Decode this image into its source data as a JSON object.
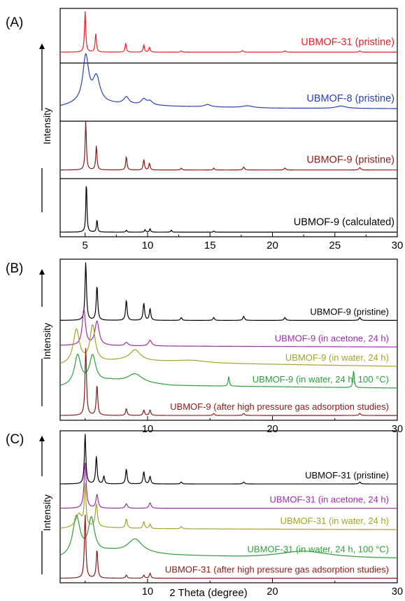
{
  "chart_data": [
    {
      "type": "line",
      "panel_label": "(A)",
      "ylabel": "Intensity",
      "xlim": [
        3,
        30
      ],
      "x_ticks": [
        "5",
        "10",
        "15",
        "20",
        "25",
        "30"
      ],
      "series": [
        {
          "name": "UBMOF-31 (pristine)",
          "color": "#e8202a",
          "baseline": 0.2,
          "amplitude": 0.75,
          "peaks": [
            [
              5.0,
              1.0,
              0.06
            ],
            [
              5.85,
              0.45,
              0.06
            ],
            [
              8.25,
              0.22,
              0.06
            ],
            [
              9.7,
              0.18,
              0.06
            ],
            [
              10.15,
              0.12,
              0.06
            ],
            [
              12.7,
              0.03,
              0.06
            ],
            [
              17.6,
              0.04,
              0.08
            ],
            [
              21.0,
              0.03,
              0.08
            ],
            [
              27.0,
              0.03,
              0.08
            ]
          ]
        },
        {
          "name": "UBMOF-8 (pristine)",
          "color": "#2a3fb8",
          "baseline": 0.2,
          "amplitude": 0.8,
          "peaks": [
            [
              5.05,
              1.0,
              0.28
            ],
            [
              5.9,
              0.55,
              0.35
            ],
            [
              8.3,
              0.15,
              0.25
            ],
            [
              9.7,
              0.12,
              0.25
            ],
            [
              10.2,
              0.08,
              0.25
            ],
            [
              14.8,
              0.05,
              0.3
            ],
            [
              18.0,
              0.04,
              0.5
            ],
            [
              25.5,
              0.05,
              0.5
            ]
          ],
          "background": [
            [
              3,
              0.06
            ],
            [
              4.3,
              0.12
            ],
            [
              7,
              0.12
            ],
            [
              12,
              0.07
            ],
            [
              20,
              0.03
            ],
            [
              30,
              0.02
            ]
          ]
        },
        {
          "name": "UBMOF-9 (pristine)",
          "color": "#8b1a1a",
          "baseline": 0.15,
          "amplitude": 0.85,
          "peaks": [
            [
              5.05,
              1.0,
              0.06
            ],
            [
              5.9,
              0.5,
              0.06
            ],
            [
              8.3,
              0.28,
              0.06
            ],
            [
              9.7,
              0.22,
              0.06
            ],
            [
              10.15,
              0.14,
              0.06
            ],
            [
              12.7,
              0.04,
              0.06
            ],
            [
              15.3,
              0.04,
              0.06
            ],
            [
              17.7,
              0.06,
              0.08
            ],
            [
              21.0,
              0.04,
              0.08
            ],
            [
              27.0,
              0.05,
              0.08
            ]
          ]
        },
        {
          "name": "UBMOF-9 (calculated)",
          "color": "#000000",
          "baseline": 0.08,
          "amplitude": 0.88,
          "peaks": [
            [
              5.1,
              1.0,
              0.05
            ],
            [
              5.95,
              0.25,
              0.05
            ],
            [
              8.3,
              0.04,
              0.05
            ],
            [
              9.8,
              0.05,
              0.05
            ],
            [
              10.2,
              0.07,
              0.05
            ],
            [
              11.9,
              0.04,
              0.05
            ],
            [
              15.3,
              0.02,
              0.05
            ]
          ]
        }
      ]
    },
    {
      "type": "line",
      "panel_label": "(B)",
      "ylabel": "Intensity",
      "xlim": [
        3,
        30
      ],
      "x_ticks": [
        "10",
        "20",
        "30"
      ],
      "series": [
        {
          "name": "UBMOF-9 (pristine)",
          "color": "#000000",
          "baseline": 0.62,
          "amplitude": 0.36,
          "peaks": [
            [
              5.05,
              1.0,
              0.07
            ],
            [
              5.95,
              0.6,
              0.07
            ],
            [
              8.3,
              0.35,
              0.07
            ],
            [
              9.7,
              0.3,
              0.07
            ],
            [
              10.2,
              0.2,
              0.07
            ],
            [
              12.7,
              0.05,
              0.07
            ],
            [
              15.3,
              0.05,
              0.07
            ],
            [
              17.7,
              0.07,
              0.08
            ],
            [
              21.0,
              0.05,
              0.08
            ],
            [
              27.0,
              0.05,
              0.08
            ]
          ]
        },
        {
          "name": "UBMOF-9 (in acetone, 24 h)",
          "color": "#9b2fa8",
          "baseline": 0.455,
          "amplitude": 0.3,
          "peaks": [
            [
              4.9,
              0.75,
              0.15
            ],
            [
              5.95,
              0.5,
              0.2
            ],
            [
              8.3,
              0.07,
              0.15
            ],
            [
              10.2,
              0.12,
              0.15
            ]
          ],
          "background": [
            [
              3,
              0.03
            ],
            [
              10,
              0.02
            ],
            [
              30,
              0.0
            ]
          ]
        },
        {
          "name": "UBMOF-9 (in water, 24 h)",
          "color": "#a6a22a",
          "baseline": 0.335,
          "amplitude": 0.3,
          "peaks": [
            [
              4.3,
              0.7,
              0.3
            ],
            [
              5.6,
              0.75,
              0.25
            ],
            [
              9.0,
              0.22,
              0.5
            ],
            [
              13.5,
              0.05,
              1.5
            ]
          ],
          "background": [
            [
              3,
              0.02
            ],
            [
              8,
              0.12
            ],
            [
              15,
              0.06
            ],
            [
              30,
              0.0
            ]
          ]
        },
        {
          "name": "UBMOF-9 (in water, 24 h, 100 °C)",
          "color": "#2e9e3c",
          "baseline": 0.2,
          "amplitude": 0.3,
          "peaks": [
            [
              4.4,
              0.6,
              0.3
            ],
            [
              5.6,
              0.55,
              0.3
            ],
            [
              9.0,
              0.18,
              0.7
            ],
            [
              16.5,
              0.2,
              0.06
            ],
            [
              26.5,
              0.35,
              0.06
            ]
          ],
          "background": [
            [
              3,
              0.02
            ],
            [
              7,
              0.15
            ],
            [
              12,
              0.05
            ],
            [
              30,
              0.0
            ]
          ]
        },
        {
          "name": "UBMOF-9 (after high pressure gas adsorption studies)",
          "color": "#8b1a1a",
          "baseline": 0.03,
          "amplitude": 0.42,
          "peaks": [
            [
              5.05,
              1.0,
              0.07
            ],
            [
              5.95,
              0.45,
              0.07
            ],
            [
              8.3,
              0.1,
              0.07
            ],
            [
              9.7,
              0.08,
              0.07
            ],
            [
              10.2,
              0.08,
              0.07
            ],
            [
              15.3,
              0.03,
              0.07
            ],
            [
              17.7,
              0.03,
              0.08
            ],
            [
              27.0,
              0.03,
              0.08
            ]
          ]
        }
      ]
    },
    {
      "type": "line",
      "panel_label": "(C)",
      "ylabel": "Intensity",
      "xlabel": "2 Theta (degree)",
      "xlim": [
        3,
        30
      ],
      "x_ticks": [
        "10",
        "20",
        "30"
      ],
      "series": [
        {
          "name": "UBMOF-31 (pristine)",
          "color": "#000000",
          "baseline": 0.65,
          "amplitude": 0.33,
          "peaks": [
            [
              5.0,
              1.0,
              0.07
            ],
            [
              5.9,
              0.55,
              0.07
            ],
            [
              6.5,
              0.15,
              0.07
            ],
            [
              8.3,
              0.3,
              0.07
            ],
            [
              9.7,
              0.25,
              0.07
            ],
            [
              10.2,
              0.15,
              0.07
            ],
            [
              12.7,
              0.04,
              0.07
            ],
            [
              17.7,
              0.04,
              0.08
            ],
            [
              27.0,
              0.04,
              0.08
            ]
          ]
        },
        {
          "name": "UBMOF-31 (in acetone, 24 h)",
          "color": "#9b2fa8",
          "baseline": 0.49,
          "amplitude": 0.3,
          "peaks": [
            [
              5.0,
              1.0,
              0.1
            ],
            [
              5.95,
              0.3,
              0.1
            ],
            [
              8.3,
              0.1,
              0.1
            ],
            [
              10.2,
              0.12,
              0.1
            ]
          ]
        },
        {
          "name": "UBMOF-31 (in water, 24 h)",
          "color": "#a6a22a",
          "baseline": 0.35,
          "amplitude": 0.3,
          "peaks": [
            [
              4.5,
              0.3,
              0.3
            ],
            [
              5.0,
              0.9,
              0.08
            ],
            [
              5.9,
              0.5,
              0.1
            ],
            [
              8.3,
              0.2,
              0.08
            ],
            [
              9.7,
              0.15,
              0.08
            ],
            [
              10.2,
              0.1,
              0.08
            ],
            [
              12.7,
              0.05,
              0.08
            ]
          ],
          "background": [
            [
              3,
              0.02
            ],
            [
              6,
              0.05
            ],
            [
              10,
              0.02
            ],
            [
              30,
              0.0
            ]
          ]
        },
        {
          "name": "UBMOF-31 (in water, 24 h, 100 °C)",
          "color": "#2e9e3c",
          "baseline": 0.15,
          "amplitude": 0.3,
          "peaks": [
            [
              4.3,
              0.85,
              0.35
            ],
            [
              5.5,
              0.75,
              0.3
            ],
            [
              9.0,
              0.3,
              0.7
            ],
            [
              22.5,
              0.15,
              2.5
            ]
          ],
          "background": [
            [
              3,
              0.03
            ],
            [
              7,
              0.18
            ],
            [
              12,
              0.1
            ],
            [
              18,
              0.05
            ],
            [
              30,
              0.03
            ]
          ]
        },
        {
          "name": "UBMOF-31 (after high pressure gas adsorption studies)",
          "color": "#8b1a1a",
          "baseline": 0.03,
          "amplitude": 0.42,
          "peaks": [
            [
              5.0,
              1.0,
              0.07
            ],
            [
              5.95,
              0.45,
              0.07
            ],
            [
              8.3,
              0.05,
              0.07
            ],
            [
              9.7,
              0.05,
              0.07
            ],
            [
              10.2,
              0.08,
              0.07
            ]
          ]
        }
      ]
    }
  ]
}
